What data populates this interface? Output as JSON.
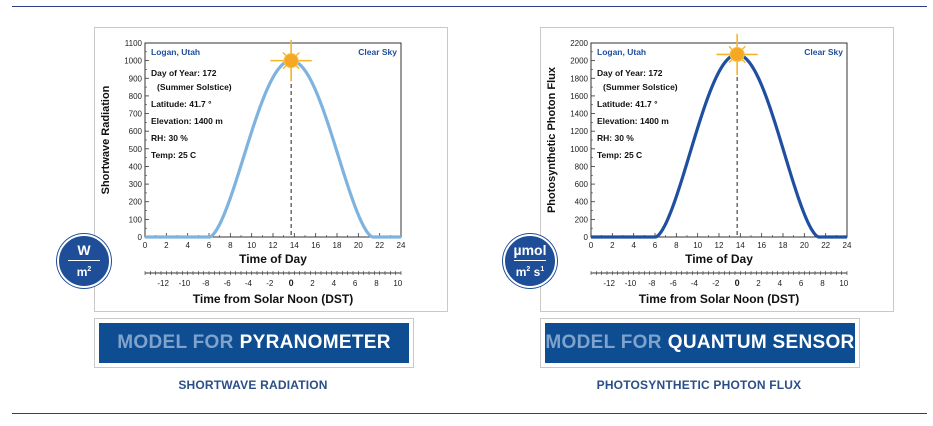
{
  "charts": [
    {
      "id": "left",
      "chart_data": {
        "type": "line",
        "title": "",
        "ylabel": "Shortwave Radiation",
        "xlabel": "Time of Day",
        "x2label": "Time from Solar Noon (DST)",
        "ylim": [
          0,
          1100
        ],
        "xlim": [
          0,
          24
        ],
        "yticks": [
          0,
          100,
          200,
          300,
          400,
          500,
          600,
          700,
          800,
          900,
          1000,
          1100
        ],
        "xticks": [
          0,
          2,
          4,
          6,
          8,
          10,
          12,
          14,
          16,
          18,
          20,
          22,
          24
        ],
        "x2ticks": [
          "-12",
          "-10",
          "-8",
          "-6",
          "-4",
          "-2",
          "0",
          "2",
          "4",
          "6",
          "8",
          "10"
        ],
        "solar_noon": 13.7,
        "sunrise": 6.0,
        "sunset": 21.3,
        "peak": 1000,
        "line_color": "#7eb3df",
        "annotations": {
          "location": "Logan, Utah",
          "sky": "Clear Sky",
          "day_of_year": "Day of Year: 172",
          "solstice": "(Summer Solstice)",
          "latitude": "Latitude: 41.7 °",
          "elevation": "Elevation: 1400 m",
          "rh": "RH: 30 %",
          "temp": "Temp: 25 C"
        }
      },
      "unit": {
        "numerator": "W",
        "denominator": "m",
        "den_sup": "2"
      },
      "banner": {
        "prefix": "MODEL FOR",
        "highlight": "PYRANOMETER"
      },
      "caption": "SHORTWAVE RADIATION"
    },
    {
      "id": "right",
      "chart_data": {
        "type": "line",
        "title": "",
        "ylabel": "Photosynthetic Photon Flux",
        "xlabel": "Time of Day",
        "x2label": "Time from Solar Noon (DST)",
        "ylim": [
          0,
          2200
        ],
        "xlim": [
          0,
          24
        ],
        "yticks": [
          0,
          200,
          400,
          600,
          800,
          1000,
          1200,
          1400,
          1600,
          1800,
          2000,
          2200
        ],
        "xticks": [
          0,
          2,
          4,
          6,
          8,
          10,
          12,
          14,
          16,
          18,
          20,
          22,
          24
        ],
        "x2ticks": [
          "-12",
          "-10",
          "-8",
          "-6",
          "-4",
          "-2",
          "0",
          "2",
          "4",
          "6",
          "8",
          "10"
        ],
        "solar_noon": 13.7,
        "sunrise": 6.0,
        "sunset": 21.3,
        "peak": 2070,
        "line_color": "#1f4fa0",
        "annotations": {
          "location": "Logan, Utah",
          "sky": "Clear Sky",
          "day_of_year": "Day of Year: 172",
          "solstice": "(Summer Solstice)",
          "latitude": "Latitude: 41.7 °",
          "elevation": "Elevation: 1400 m",
          "rh": "RH: 30 %",
          "temp": "Temp: 25 C"
        }
      },
      "unit": {
        "numerator": "µmol",
        "denominator": "m",
        "den_sup": "2",
        "den2": "s",
        "den2_sup": "1"
      },
      "banner": {
        "prefix": "MODEL FOR",
        "highlight": "QUANTUM SENSOR"
      },
      "caption": "PHOTOSYNTHETIC PHOTON FLUX"
    }
  ]
}
